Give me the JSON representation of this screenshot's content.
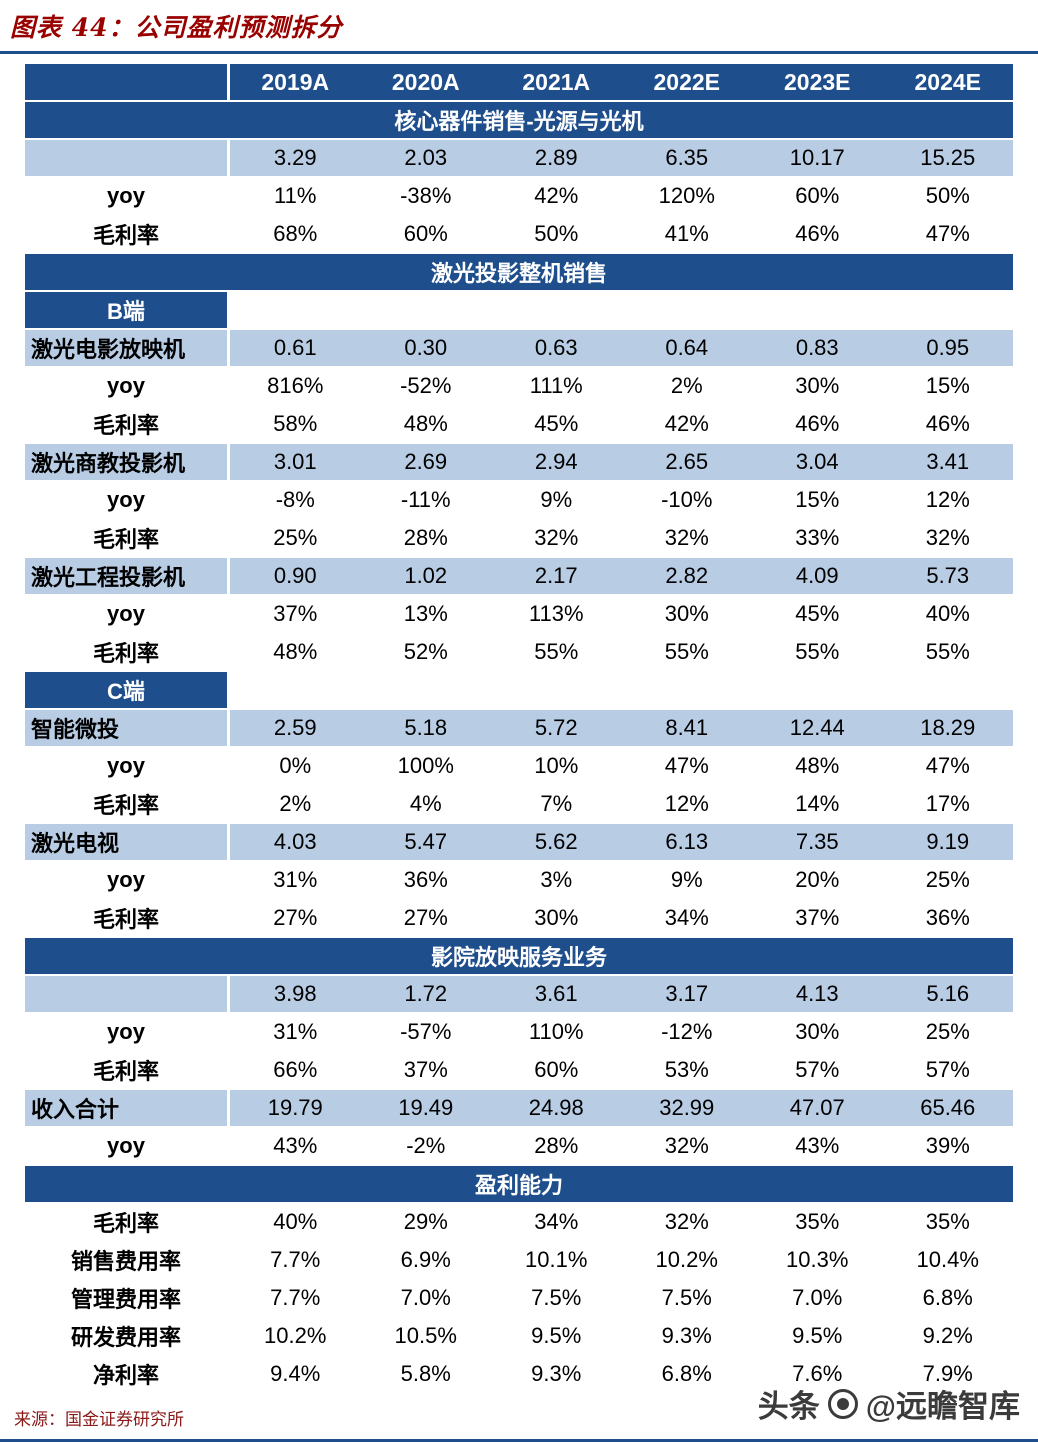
{
  "page": {
    "title": "图表 44：公司盈利预测拆分",
    "source": "来源：国金证券研究所",
    "watermark": {
      "brand": "头条",
      "handle": "@远瞻智库"
    }
  },
  "colors": {
    "navy": "#1F4E8C",
    "light_blue": "#B8CCE4",
    "title_red": "#990000",
    "source_red": "#8B1A1A"
  },
  "table": {
    "columns": [
      "",
      "2019A",
      "2020A",
      "2021A",
      "2022E",
      "2023E",
      "2024E"
    ],
    "rows": [
      {
        "type": "section",
        "label": "核心器件销售-光源与光机"
      },
      {
        "type": "blue",
        "label": "",
        "values": [
          "3.29",
          "2.03",
          "2.89",
          "6.35",
          "10.17",
          "15.25"
        ]
      },
      {
        "type": "white",
        "label": "yoy",
        "values": [
          "11%",
          "-38%",
          "42%",
          "120%",
          "60%",
          "50%"
        ]
      },
      {
        "type": "white",
        "label": "毛利率",
        "values": [
          "68%",
          "60%",
          "50%",
          "41%",
          "46%",
          "47%"
        ]
      },
      {
        "type": "section",
        "label": "激光投影整机销售"
      },
      {
        "type": "sub",
        "label": "B端"
      },
      {
        "type": "blue",
        "label": "激光电影放映机",
        "values": [
          "0.61",
          "0.30",
          "0.63",
          "0.64",
          "0.83",
          "0.95"
        ]
      },
      {
        "type": "white",
        "label": "yoy",
        "values": [
          "816%",
          "-52%",
          "111%",
          "2%",
          "30%",
          "15%"
        ]
      },
      {
        "type": "white",
        "label": "毛利率",
        "values": [
          "58%",
          "48%",
          "45%",
          "42%",
          "46%",
          "46%"
        ]
      },
      {
        "type": "blue",
        "label": "激光商教投影机",
        "values": [
          "3.01",
          "2.69",
          "2.94",
          "2.65",
          "3.04",
          "3.41"
        ]
      },
      {
        "type": "white",
        "label": "yoy",
        "values": [
          "-8%",
          "-11%",
          "9%",
          "-10%",
          "15%",
          "12%"
        ]
      },
      {
        "type": "white",
        "label": "毛利率",
        "values": [
          "25%",
          "28%",
          "32%",
          "32%",
          "33%",
          "32%"
        ]
      },
      {
        "type": "blue",
        "label": "激光工程投影机",
        "values": [
          "0.90",
          "1.02",
          "2.17",
          "2.82",
          "4.09",
          "5.73"
        ]
      },
      {
        "type": "white",
        "label": "yoy",
        "values": [
          "37%",
          "13%",
          "113%",
          "30%",
          "45%",
          "40%"
        ]
      },
      {
        "type": "white",
        "label": "毛利率",
        "values": [
          "48%",
          "52%",
          "55%",
          "55%",
          "55%",
          "55%"
        ]
      },
      {
        "type": "sub",
        "label": "C端"
      },
      {
        "type": "blue",
        "label": "智能微投",
        "values": [
          "2.59",
          "5.18",
          "5.72",
          "8.41",
          "12.44",
          "18.29"
        ]
      },
      {
        "type": "white",
        "label": "yoy",
        "values": [
          "0%",
          "100%",
          "10%",
          "47%",
          "48%",
          "47%"
        ]
      },
      {
        "type": "white",
        "label": "毛利率",
        "values": [
          "2%",
          "4%",
          "7%",
          "12%",
          "14%",
          "17%"
        ]
      },
      {
        "type": "blue",
        "label": "激光电视",
        "values": [
          "4.03",
          "5.47",
          "5.62",
          "6.13",
          "7.35",
          "9.19"
        ]
      },
      {
        "type": "white",
        "label": "yoy",
        "values": [
          "31%",
          "36%",
          "3%",
          "9%",
          "20%",
          "25%"
        ]
      },
      {
        "type": "white",
        "label": "毛利率",
        "values": [
          "27%",
          "27%",
          "30%",
          "34%",
          "37%",
          "36%"
        ]
      },
      {
        "type": "section",
        "label": "影院放映服务业务"
      },
      {
        "type": "blue",
        "label": "",
        "values": [
          "3.98",
          "1.72",
          "3.61",
          "3.17",
          "4.13",
          "5.16"
        ]
      },
      {
        "type": "white",
        "label": "yoy",
        "values": [
          "31%",
          "-57%",
          "110%",
          "-12%",
          "30%",
          "25%"
        ]
      },
      {
        "type": "white",
        "label": "毛利率",
        "values": [
          "66%",
          "37%",
          "60%",
          "53%",
          "57%",
          "57%"
        ]
      },
      {
        "type": "blue",
        "label": "收入合计",
        "values": [
          "19.79",
          "19.49",
          "24.98",
          "32.99",
          "47.07",
          "65.46"
        ]
      },
      {
        "type": "white",
        "label": "yoy",
        "values": [
          "43%",
          "-2%",
          "28%",
          "32%",
          "43%",
          "39%"
        ]
      },
      {
        "type": "section",
        "label": "盈利能力"
      },
      {
        "type": "white",
        "label": "毛利率",
        "values": [
          "40%",
          "29%",
          "34%",
          "32%",
          "35%",
          "35%"
        ]
      },
      {
        "type": "white",
        "label": "销售费用率",
        "values": [
          "7.7%",
          "6.9%",
          "10.1%",
          "10.2%",
          "10.3%",
          "10.4%"
        ]
      },
      {
        "type": "white",
        "label": "管理费用率",
        "values": [
          "7.7%",
          "7.0%",
          "7.5%",
          "7.5%",
          "7.0%",
          "6.8%"
        ]
      },
      {
        "type": "white",
        "label": "研发费用率",
        "values": [
          "10.2%",
          "10.5%",
          "9.5%",
          "9.3%",
          "9.5%",
          "9.2%"
        ]
      },
      {
        "type": "white",
        "label": "净利率",
        "values": [
          "9.4%",
          "5.8%",
          "9.3%",
          "6.8%",
          "7.6%",
          "7.9%"
        ]
      }
    ]
  }
}
